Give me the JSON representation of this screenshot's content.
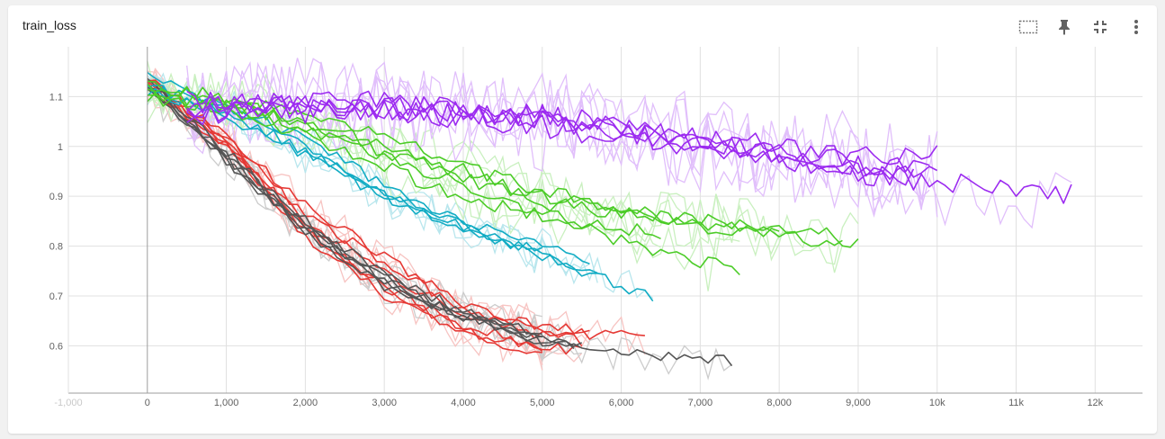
{
  "card": {
    "title": "train_loss"
  },
  "toolbar": {
    "icons": [
      "fit-domain-icon",
      "pin-icon",
      "fullscreen-exit-icon",
      "more-vert-icon"
    ]
  },
  "chart_data": {
    "type": "line",
    "title": "train_loss",
    "xlim": [
      -1000,
      12600
    ],
    "ylim": [
      0.505,
      1.2
    ],
    "x_ticks": [
      "-1,000",
      "0",
      "1,000",
      "2,000",
      "3,000",
      "4,000",
      "5,000",
      "6,000",
      "7,000",
      "8,000",
      "9,000",
      "10k",
      "11k",
      "12k"
    ],
    "x_tick_values": [
      -1000,
      0,
      1000,
      2000,
      3000,
      4000,
      5000,
      6000,
      7000,
      8000,
      9000,
      10000,
      11000,
      12000
    ],
    "y_ticks": [
      "0.6",
      "0.7",
      "0.8",
      "0.9",
      "1",
      "1.1"
    ],
    "y_tick_values": [
      0.6,
      0.7,
      0.8,
      0.9,
      1.0,
      1.1
    ],
    "grid": true,
    "series": [
      {
        "color": "#e53935",
        "x": [
          0,
          1000,
          2000,
          3000,
          4000,
          5000
        ],
        "y": [
          1.14,
          1.0,
          0.82,
          0.7,
          0.62,
          0.58
        ]
      },
      {
        "color": "#e53935",
        "x": [
          0,
          1000,
          2000,
          3000,
          4000,
          5000,
          5500
        ],
        "y": [
          1.13,
          1.0,
          0.83,
          0.72,
          0.64,
          0.6,
          0.59
        ]
      },
      {
        "color": "#e53935",
        "x": [
          0,
          1000,
          2000,
          3000,
          4000,
          5000,
          6000,
          6300
        ],
        "y": [
          1.13,
          1.02,
          0.88,
          0.78,
          0.68,
          0.63,
          0.62,
          0.61
        ]
      },
      {
        "color": "#e53935",
        "x": [
          0,
          1000,
          2000,
          3000,
          4000,
          5000,
          5500
        ],
        "y": [
          1.12,
          1.0,
          0.85,
          0.75,
          0.66,
          0.62,
          0.61
        ]
      },
      {
        "color": "#e53935",
        "x": [
          0,
          1000,
          2000,
          3000,
          4000,
          5000
        ],
        "y": [
          1.13,
          1.01,
          0.84,
          0.72,
          0.63,
          0.595
        ]
      },
      {
        "color": "#e53935",
        "x": [
          0,
          1000,
          2000,
          3000,
          4000,
          5000,
          5600
        ],
        "y": [
          1.14,
          1.02,
          0.86,
          0.77,
          0.67,
          0.64,
          0.63
        ]
      },
      {
        "color": "#555555",
        "x": [
          0,
          1000,
          2000,
          3000,
          4000,
          5000,
          6000,
          7000,
          7400
        ],
        "y": [
          1.13,
          0.98,
          0.84,
          0.73,
          0.66,
          0.61,
          0.585,
          0.575,
          0.57
        ]
      },
      {
        "color": "#555555",
        "x": [
          0,
          1000,
          2000,
          3000,
          4000,
          5000,
          5400
        ],
        "y": [
          1.12,
          0.97,
          0.83,
          0.72,
          0.66,
          0.61,
          0.6
        ]
      },
      {
        "color": "#555555",
        "x": [
          0,
          1000,
          2000,
          3000,
          4000,
          5000
        ],
        "y": [
          1.13,
          0.99,
          0.85,
          0.74,
          0.67,
          0.62
        ]
      },
      {
        "color": "#555555",
        "x": [
          0,
          1000,
          2000,
          3000,
          4000,
          5000,
          5500
        ],
        "y": [
          1.12,
          0.98,
          0.83,
          0.73,
          0.66,
          0.61,
          0.6
        ]
      },
      {
        "color": "#555555",
        "x": [
          0,
          1000,
          2000,
          3000,
          4000,
          5000
        ],
        "y": [
          1.12,
          0.97,
          0.84,
          0.74,
          0.66,
          0.62
        ]
      },
      {
        "color": "#12acc4",
        "x": [
          0,
          1000,
          2000,
          3000,
          4000,
          5000,
          6000,
          6400
        ],
        "y": [
          1.14,
          1.08,
          1.02,
          0.92,
          0.84,
          0.78,
          0.72,
          0.7
        ]
      },
      {
        "color": "#12acc4",
        "x": [
          0,
          1000,
          2000,
          3000,
          4000,
          5000,
          5700
        ],
        "y": [
          1.12,
          1.08,
          1.0,
          0.9,
          0.84,
          0.78,
          0.75
        ]
      },
      {
        "color": "#12acc4",
        "x": [
          0,
          1000,
          2000,
          3000,
          4000,
          5000,
          5600
        ],
        "y": [
          1.11,
          1.07,
          0.99,
          0.91,
          0.85,
          0.8,
          0.77
        ]
      },
      {
        "color": "#12acc4",
        "x": [
          0,
          1000,
          2000,
          3000,
          4000,
          5000
        ],
        "y": [
          1.12,
          1.06,
          0.98,
          0.9,
          0.83,
          0.79
        ]
      },
      {
        "color": "#4ccc28",
        "x": [
          0,
          1000,
          2000,
          3000,
          4000,
          5000,
          6000,
          7000,
          7500
        ],
        "y": [
          1.12,
          1.09,
          1.04,
          0.98,
          0.92,
          0.86,
          0.81,
          0.77,
          0.75
        ]
      },
      {
        "color": "#4ccc28",
        "x": [
          0,
          1000,
          2000,
          3000,
          4000,
          5000,
          6000,
          7000,
          8000,
          9000
        ],
        "y": [
          1.11,
          1.1,
          1.07,
          1.02,
          0.96,
          0.91,
          0.87,
          0.85,
          0.84,
          0.81
        ]
      },
      {
        "color": "#4ccc28",
        "x": [
          0,
          1000,
          2000,
          3000,
          4000,
          5000,
          6000,
          7000,
          8000
        ],
        "y": [
          1.1,
          1.09,
          1.05,
          1.0,
          0.95,
          0.9,
          0.87,
          0.85,
          0.83
        ]
      },
      {
        "color": "#4ccc28",
        "x": [
          0,
          1000,
          2000,
          3000,
          4000,
          5000,
          6000,
          7000,
          8000,
          8800
        ],
        "y": [
          1.1,
          1.08,
          1.04,
          0.99,
          0.94,
          0.89,
          0.86,
          0.84,
          0.82,
          0.8
        ]
      },
      {
        "color": "#4ccc28",
        "x": [
          0,
          1000,
          2000,
          3000,
          4000,
          5000,
          6000,
          6500
        ],
        "y": [
          1.12,
          1.07,
          1.02,
          0.96,
          0.9,
          0.86,
          0.84,
          0.83
        ]
      },
      {
        "color": "#9c2bf0",
        "x": [
          500,
          1000,
          2000,
          3000,
          4000,
          5000,
          6000,
          7000,
          8000,
          9000,
          10000,
          11000,
          11700
        ],
        "y": [
          1.08,
          1.08,
          1.08,
          1.08,
          1.07,
          1.06,
          1.04,
          1.01,
          0.98,
          0.95,
          0.93,
          0.92,
          0.9
        ]
      },
      {
        "color": "#9c2bf0",
        "x": [
          500,
          1000,
          2000,
          3000,
          4000,
          5000,
          6000,
          7000,
          8000,
          9000,
          9900
        ],
        "y": [
          1.07,
          1.07,
          1.08,
          1.09,
          1.07,
          1.05,
          1.03,
          1.01,
          0.99,
          0.97,
          0.96
        ]
      },
      {
        "color": "#9c2bf0",
        "x": [
          500,
          1000,
          2000,
          3000,
          4000,
          5000,
          6000,
          7000,
          8000,
          9000,
          10000
        ],
        "y": [
          1.06,
          1.07,
          1.07,
          1.07,
          1.06,
          1.05,
          1.03,
          1.0,
          0.98,
          0.96,
          0.94
        ]
      },
      {
        "color": "#9c2bf0",
        "x": [
          500,
          1000,
          2000,
          3000,
          4000,
          5000,
          6000,
          7000,
          8000,
          9000,
          9700
        ],
        "y": [
          1.08,
          1.08,
          1.08,
          1.07,
          1.06,
          1.04,
          1.02,
          1.0,
          0.98,
          0.95,
          0.93
        ]
      },
      {
        "color": "#9c2bf0",
        "x": [
          500,
          1000,
          2000,
          3000,
          4000,
          5000,
          6000,
          7000,
          8000,
          9000,
          10000
        ],
        "y": [
          1.09,
          1.08,
          1.09,
          1.08,
          1.07,
          1.06,
          1.04,
          1.02,
          1.0,
          0.98,
          0.98
        ]
      }
    ]
  }
}
